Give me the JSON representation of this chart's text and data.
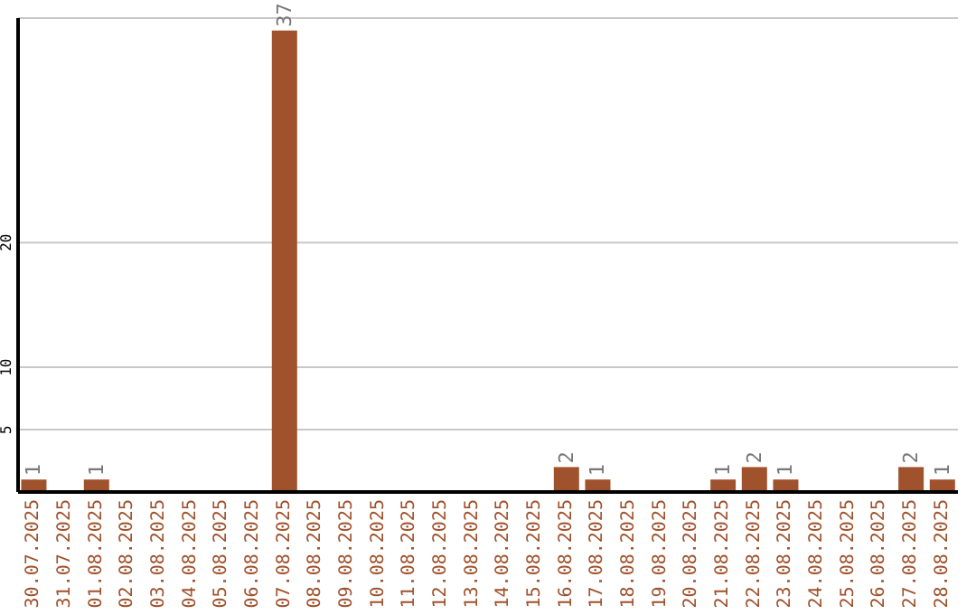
{
  "chart_data": {
    "type": "bar",
    "categories": [
      "30.07.2025",
      "31.07.2025",
      "01.08.2025",
      "02.08.2025",
      "03.08.2025",
      "04.08.2025",
      "05.08.2025",
      "06.08.2025",
      "07.08.2025",
      "08.08.2025",
      "09.08.2025",
      "10.08.2025",
      "11.08.2025",
      "12.08.2025",
      "13.08.2025",
      "14.08.2025",
      "15.08.2025",
      "16.08.2025",
      "17.08.2025",
      "18.08.2025",
      "19.08.2025",
      "20.08.2025",
      "21.08.2025",
      "22.08.2025",
      "23.08.2025",
      "24.08.2025",
      "25.08.2025",
      "26.08.2025",
      "27.08.2025",
      "28.08.2025"
    ],
    "values": [
      1,
      0,
      1,
      0,
      0,
      0,
      0,
      0,
      37,
      0,
      0,
      0,
      0,
      0,
      0,
      0,
      0,
      2,
      1,
      0,
      0,
      0,
      1,
      2,
      1,
      0,
      0,
      0,
      2,
      1
    ],
    "value_labels": [
      "1",
      null,
      "1",
      null,
      null,
      null,
      null,
      null,
      "37",
      null,
      null,
      null,
      null,
      null,
      null,
      null,
      null,
      "2",
      "1",
      null,
      null,
      null,
      "1",
      "2",
      "1",
      null,
      null,
      null,
      "2",
      "1"
    ],
    "color": "#a0522d",
    "ylim": [
      0,
      38
    ],
    "yticks": [
      5,
      10,
      20
    ],
    "grid": "y",
    "legend": false
  }
}
